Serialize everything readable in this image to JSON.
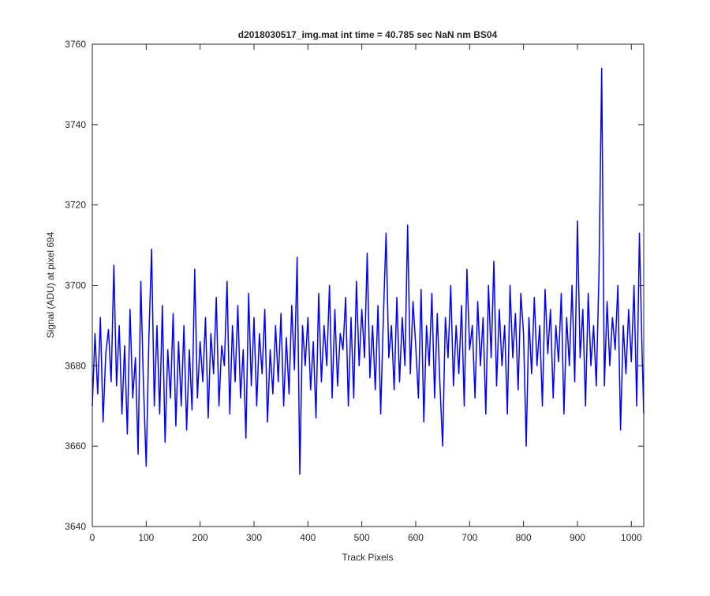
{
  "chart_data": {
    "type": "line",
    "title": "d2018030517_img.mat int time = 40.785 sec  NaN nm BS04",
    "x_label": "Track Pixels",
    "y_label": "Signal (ADU) at pixel 694",
    "xlim": [
      0,
      1023
    ],
    "ylim": [
      3640,
      3760
    ],
    "xticks": [
      0,
      100,
      200,
      300,
      400,
      500,
      600,
      700,
      800,
      900,
      1000
    ],
    "yticks": [
      3640,
      3660,
      3680,
      3700,
      3720,
      3740,
      3760
    ],
    "grid": false,
    "series": [
      {
        "color": "#0000ff",
        "x": [
          0,
          5,
          10,
          15,
          20,
          25,
          30,
          35,
          40,
          45,
          50,
          55,
          60,
          65,
          70,
          75,
          80,
          85,
          90,
          95,
          100,
          105,
          110,
          115,
          120,
          125,
          130,
          135,
          140,
          145,
          150,
          155,
          160,
          165,
          170,
          175,
          180,
          185,
          190,
          195,
          200,
          205,
          210,
          215,
          220,
          225,
          230,
          235,
          240,
          245,
          250,
          255,
          260,
          265,
          270,
          275,
          280,
          285,
          290,
          295,
          300,
          305,
          310,
          315,
          320,
          325,
          330,
          335,
          340,
          345,
          350,
          355,
          360,
          365,
          370,
          375,
          380,
          385,
          390,
          395,
          400,
          405,
          410,
          415,
          420,
          425,
          430,
          435,
          440,
          445,
          450,
          455,
          460,
          465,
          470,
          475,
          480,
          485,
          490,
          495,
          500,
          505,
          510,
          515,
          520,
          525,
          530,
          535,
          540,
          545,
          550,
          555,
          560,
          565,
          570,
          575,
          580,
          585,
          590,
          595,
          600,
          605,
          610,
          615,
          620,
          625,
          630,
          635,
          640,
          645,
          650,
          655,
          660,
          665,
          670,
          675,
          680,
          685,
          690,
          695,
          700,
          705,
          710,
          715,
          720,
          725,
          730,
          735,
          740,
          745,
          750,
          755,
          760,
          765,
          770,
          775,
          780,
          785,
          790,
          795,
          800,
          805,
          810,
          815,
          820,
          825,
          830,
          835,
          840,
          845,
          850,
          855,
          860,
          865,
          870,
          875,
          880,
          885,
          890,
          895,
          900,
          905,
          910,
          915,
          920,
          925,
          930,
          935,
          940,
          945,
          950,
          955,
          960,
          965,
          970,
          975,
          980,
          985,
          990,
          995,
          1000,
          1005,
          1010,
          1015,
          1020,
          1023
        ],
        "values": [
          3670,
          3688,
          3673,
          3692,
          3666,
          3683,
          3689,
          3676,
          3705,
          3675,
          3690,
          3668,
          3685,
          3663,
          3694,
          3672,
          3682,
          3658,
          3701,
          3675,
          3655,
          3687,
          3709,
          3670,
          3690,
          3668,
          3695,
          3661,
          3684,
          3672,
          3693,
          3665,
          3686,
          3670,
          3690,
          3664,
          3684,
          3669,
          3704,
          3672,
          3686,
          3676,
          3692,
          3667,
          3688,
          3678,
          3697,
          3670,
          3685,
          3680,
          3701,
          3668,
          3690,
          3676,
          3695,
          3672,
          3684,
          3662,
          3698,
          3675,
          3692,
          3670,
          3688,
          3678,
          3694,
          3666,
          3684,
          3673,
          3690,
          3676,
          3693,
          3670,
          3687,
          3673,
          3695,
          3679,
          3707,
          3653,
          3690,
          3680,
          3692,
          3674,
          3686,
          3667,
          3698,
          3676,
          3690,
          3680,
          3700,
          3672,
          3694,
          3675,
          3688,
          3684,
          3697,
          3670,
          3692,
          3672,
          3701,
          3680,
          3694,
          3682,
          3708,
          3677,
          3690,
          3674,
          3695,
          3668,
          3692,
          3713,
          3682,
          3690,
          3674,
          3697,
          3676,
          3692,
          3680,
          3715,
          3678,
          3696,
          3685,
          3672,
          3699,
          3666,
          3690,
          3680,
          3698,
          3672,
          3693,
          3675,
          3660,
          3692,
          3682,
          3700,
          3675,
          3690,
          3678,
          3695,
          3670,
          3704,
          3684,
          3690,
          3672,
          3696,
          3680,
          3692,
          3668,
          3700,
          3682,
          3706,
          3675,
          3694,
          3680,
          3690,
          3668,
          3700,
          3682,
          3693,
          3674,
          3698,
          3688,
          3660,
          3692,
          3678,
          3697,
          3680,
          3690,
          3670,
          3699,
          3683,
          3694,
          3672,
          3690,
          3681,
          3698,
          3668,
          3692,
          3680,
          3700,
          3676,
          3716,
          3682,
          3694,
          3670,
          3698,
          3680,
          3690,
          3675,
          3703,
          3754,
          3675,
          3696,
          3680,
          3692,
          3684,
          3700,
          3664,
          3690,
          3678,
          3694,
          3681,
          3700,
          3670,
          3713,
          3683,
          3668
        ]
      }
    ]
  }
}
